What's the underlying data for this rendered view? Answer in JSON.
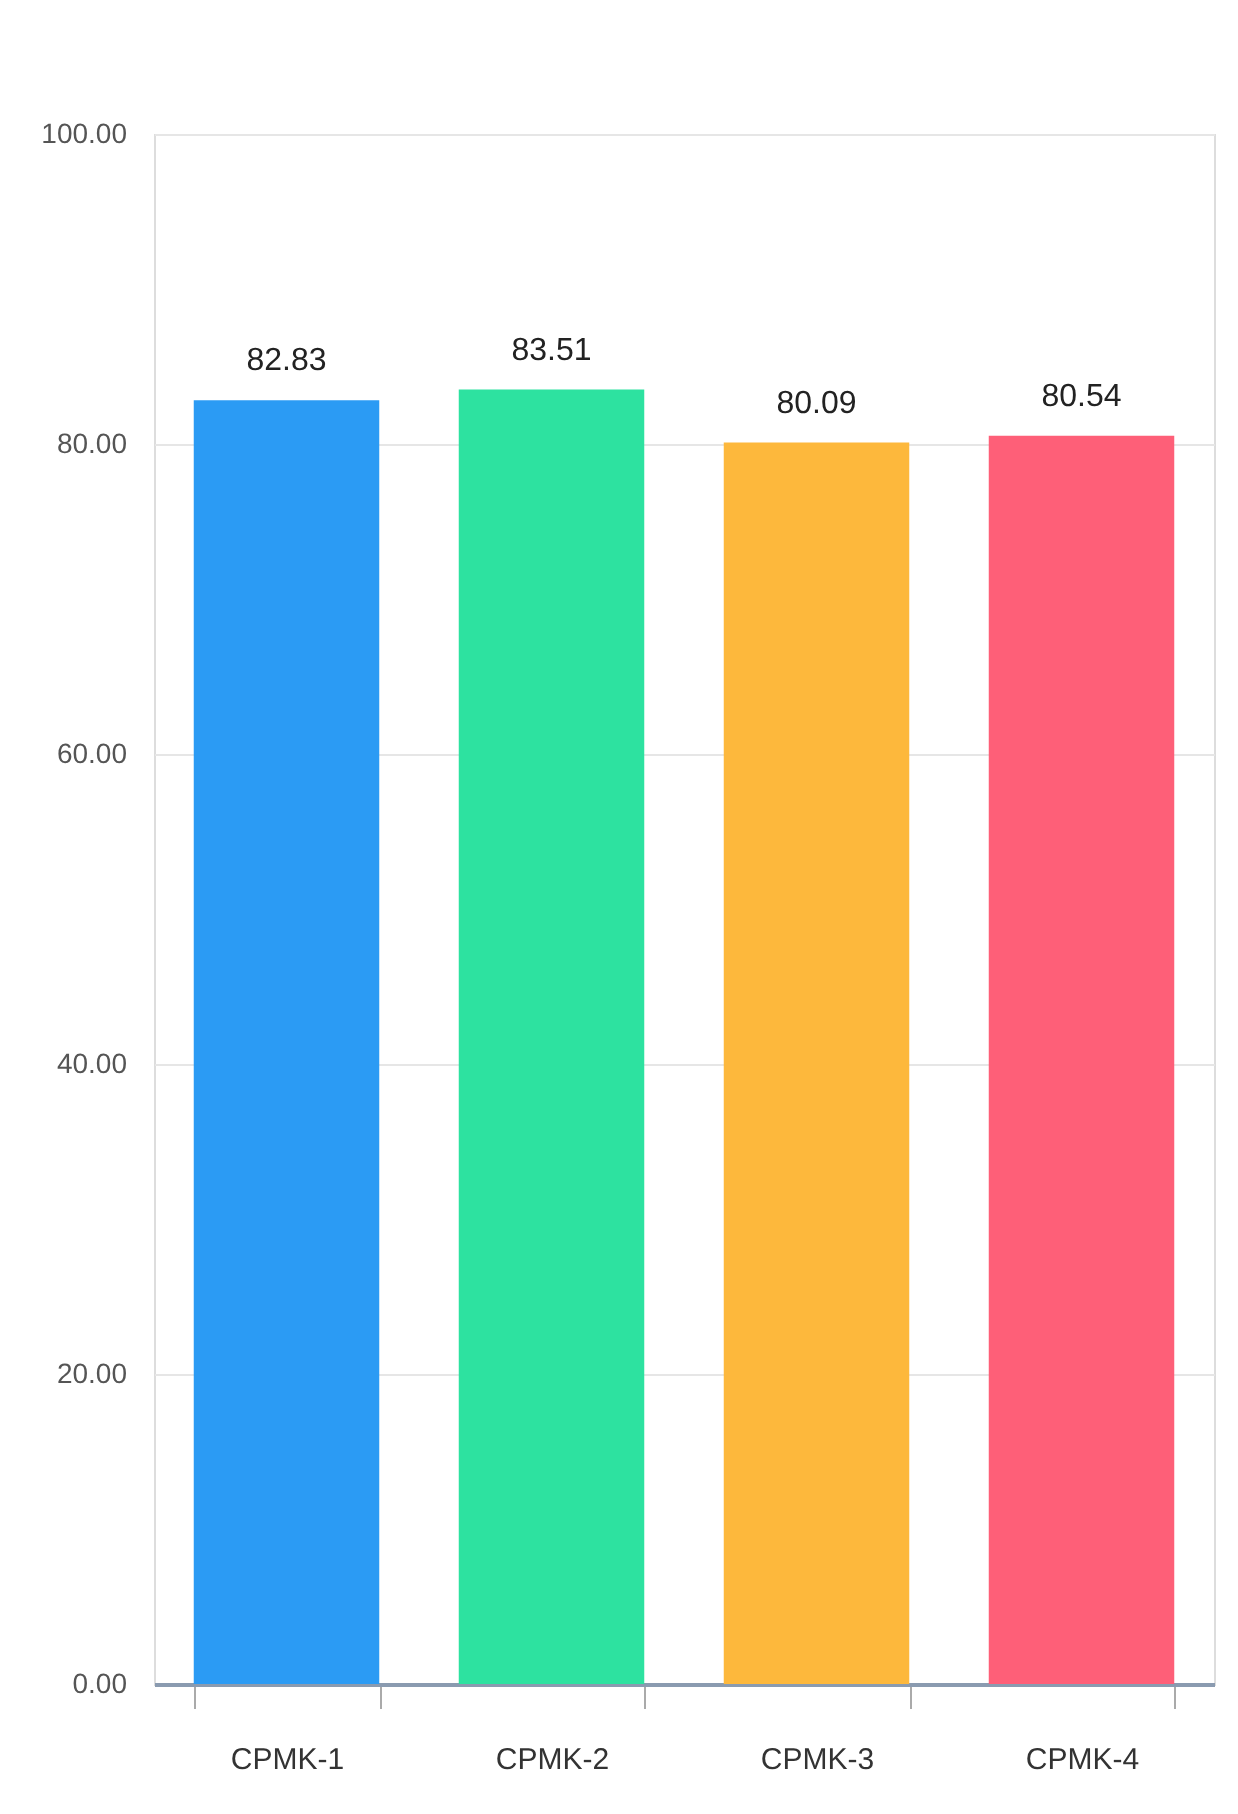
{
  "chart_data": {
    "type": "bar",
    "categories": [
      "CPMK-1",
      "CPMK-2",
      "CPMK-3",
      "CPMK-4"
    ],
    "values": [
      82.83,
      83.51,
      80.09,
      80.54
    ],
    "colors": [
      "#2b9bf4",
      "#2de2a0",
      "#fdb83c",
      "#fe5f78"
    ],
    "ylim": [
      0,
      100
    ],
    "yticks": [
      {
        "value": 0,
        "label": "0.00"
      },
      {
        "value": 20,
        "label": "20.00"
      },
      {
        "value": 40,
        "label": "40.00"
      },
      {
        "value": 60,
        "label": "60.00"
      },
      {
        "value": 80,
        "label": "80.00"
      },
      {
        "value": 100,
        "label": "100.00"
      }
    ],
    "grid": "y",
    "data_labels": true
  }
}
